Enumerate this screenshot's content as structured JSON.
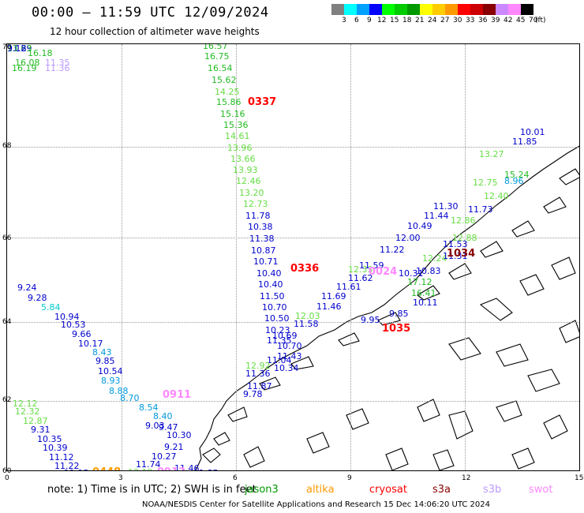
{
  "title": "00:00 – 11:59 UTC 12/09/2024",
  "subtitle": "12 hour collection of altimeter wave heights",
  "colorbar": {
    "unit": "(ft)",
    "swatches": [
      "#808080",
      "#00ffff",
      "#00a0ff",
      "#0000ff",
      "#00ff00",
      "#00cc00",
      "#009900",
      "#ffff00",
      "#ffcc00",
      "#ff9900",
      "#ff0000",
      "#cc0000",
      "#880000",
      "#cc88ff",
      "#ff88ff",
      "#000000"
    ],
    "labels": [
      "3",
      "6",
      "9",
      "12",
      "15",
      "18",
      "21",
      "24",
      "27",
      "30",
      "33",
      "36",
      "39",
      "42",
      "45",
      "70"
    ]
  },
  "axes": {
    "lat_ticks": [
      "70",
      "68",
      "66",
      "64",
      "62",
      "60"
    ],
    "lon_ticks": [
      "0",
      "3",
      "6",
      "9",
      "12",
      "15"
    ]
  },
  "pass_times": [
    {
      "text": "0337",
      "color": "#ff0000"
    },
    {
      "text": "0336",
      "color": "#ff0000"
    },
    {
      "text": "0024",
      "color": "#ff88ff"
    },
    {
      "text": "1034",
      "color": "#880000"
    },
    {
      "text": "1035",
      "color": "#ff0000"
    },
    {
      "text": "0911",
      "color": "#ff88ff"
    },
    {
      "text": "0448",
      "color": "#ff9900"
    },
    {
      "text": "0912",
      "color": "#ff88ff"
    }
  ],
  "observations": [
    {
      "text": "16.18",
      "color": "#22bb22"
    },
    {
      "text": "16.08",
      "color": "#22bb22"
    },
    {
      "text": "16.19",
      "color": "#22bb22"
    },
    {
      "text": "11.35",
      "color": "#bb99ff"
    },
    {
      "text": "11.36",
      "color": "#bb99ff"
    },
    {
      "text": "16.57",
      "color": "#22bb22"
    },
    {
      "text": "16.75",
      "color": "#22bb22"
    },
    {
      "text": "16.54",
      "color": "#22bb22"
    },
    {
      "text": "15.62",
      "color": "#22bb22"
    },
    {
      "text": "14.25",
      "color": "#66dd44"
    },
    {
      "text": "15.86",
      "color": "#22bb22"
    },
    {
      "text": "15.16",
      "color": "#22bb22"
    },
    {
      "text": "15.36",
      "color": "#22bb22"
    },
    {
      "text": "14.61",
      "color": "#66dd44"
    },
    {
      "text": "13.96",
      "color": "#66dd44"
    },
    {
      "text": "13.66",
      "color": "#66dd44"
    },
    {
      "text": "13.93",
      "color": "#66dd44"
    },
    {
      "text": "12.46",
      "color": "#66dd44"
    },
    {
      "text": "13.20",
      "color": "#66dd44"
    },
    {
      "text": "12.73",
      "color": "#66dd44"
    },
    {
      "text": "11.78",
      "color": "#0000cc"
    },
    {
      "text": "10.38",
      "color": "#0000cc"
    },
    {
      "text": "11.38",
      "color": "#0000cc"
    },
    {
      "text": "10.87",
      "color": "#0000cc"
    },
    {
      "text": "10.71",
      "color": "#0000cc"
    },
    {
      "text": "10.40",
      "color": "#0000cc"
    },
    {
      "text": "10.40",
      "color": "#0000cc"
    },
    {
      "text": "11.50",
      "color": "#0000cc"
    },
    {
      "text": "10.70",
      "color": "#0000cc"
    },
    {
      "text": "10.50",
      "color": "#0000cc"
    },
    {
      "text": "10.23",
      "color": "#0000cc"
    },
    {
      "text": "11.35",
      "color": "#0000cc"
    },
    {
      "text": "10.69",
      "color": "#0000cc"
    },
    {
      "text": "10.70",
      "color": "#0000cc"
    },
    {
      "text": "11.43",
      "color": "#0000cc"
    },
    {
      "text": "11.04",
      "color": "#0000cc"
    },
    {
      "text": "10.34",
      "color": "#0000cc"
    },
    {
      "text": "11.36",
      "color": "#0000cc"
    },
    {
      "text": "11.87",
      "color": "#0000cc"
    },
    {
      "text": "9.78",
      "color": "#0000cc"
    },
    {
      "text": "12.92",
      "color": "#66dd44"
    },
    {
      "text": "11.58",
      "color": "#0000cc"
    },
    {
      "text": "12.03",
      "color": "#66dd44"
    },
    {
      "text": "11.46",
      "color": "#0000cc"
    },
    {
      "text": "11.69",
      "color": "#0000cc"
    },
    {
      "text": "11.61",
      "color": "#0000cc"
    },
    {
      "text": "11.62",
      "color": "#0000cc"
    },
    {
      "text": "12.33",
      "color": "#66dd44"
    },
    {
      "text": "11.59",
      "color": "#0000cc"
    },
    {
      "text": "11.22",
      "color": "#0000cc"
    },
    {
      "text": "12.00",
      "color": "#0000cc"
    },
    {
      "text": "10.49",
      "color": "#0000cc"
    },
    {
      "text": "11.44",
      "color": "#0000cc"
    },
    {
      "text": "11.30",
      "color": "#0000cc"
    },
    {
      "text": "12.24",
      "color": "#66dd44"
    },
    {
      "text": "10.83",
      "color": "#0000cc"
    },
    {
      "text": "11.53",
      "color": "#0000cc"
    },
    {
      "text": "11.31",
      "color": "#0000cc"
    },
    {
      "text": "12.86",
      "color": "#66dd44"
    },
    {
      "text": "12.88",
      "color": "#66dd44"
    },
    {
      "text": "11.73",
      "color": "#0000cc"
    },
    {
      "text": "12.40",
      "color": "#66dd44"
    },
    {
      "text": "12.75",
      "color": "#66dd44"
    },
    {
      "text": "8.96",
      "color": "#0099dd"
    },
    {
      "text": "13.27",
      "color": "#66dd44"
    },
    {
      "text": "15.24",
      "color": "#22bb22"
    },
    {
      "text": "11.85",
      "color": "#0000cc"
    },
    {
      "text": "10.01",
      "color": "#0000cc"
    },
    {
      "text": "10.31",
      "color": "#0000cc"
    },
    {
      "text": "17.12",
      "color": "#22bb22"
    },
    {
      "text": "16.41",
      "color": "#22bb22"
    },
    {
      "text": "10.11",
      "color": "#0000cc"
    },
    {
      "text": "9.85",
      "color": "#0000cc"
    },
    {
      "text": "9.95",
      "color": "#0000cc"
    },
    {
      "text": "9.24",
      "color": "#0000cc"
    },
    {
      "text": "9.28",
      "color": "#0000cc"
    },
    {
      "text": "5.84",
      "color": "#00cccc"
    },
    {
      "text": "10.94",
      "color": "#0000cc"
    },
    {
      "text": "10.53",
      "color": "#0000cc"
    },
    {
      "text": "9.66",
      "color": "#0000cc"
    },
    {
      "text": "10.17",
      "color": "#0000cc"
    },
    {
      "text": "8.43",
      "color": "#0099dd"
    },
    {
      "text": "9.85",
      "color": "#0000cc"
    },
    {
      "text": "10.54",
      "color": "#0000cc"
    },
    {
      "text": "8.93",
      "color": "#0099dd"
    },
    {
      "text": "8.88",
      "color": "#0099dd"
    },
    {
      "text": "8.70",
      "color": "#0099dd"
    },
    {
      "text": "8.54",
      "color": "#0099dd"
    },
    {
      "text": "8.40",
      "color": "#0099dd"
    },
    {
      "text": "9.03",
      "color": "#0000cc"
    },
    {
      "text": "9.47",
      "color": "#0000cc"
    },
    {
      "text": "10.30",
      "color": "#0000cc"
    },
    {
      "text": "9.21",
      "color": "#0000cc"
    },
    {
      "text": "10.27",
      "color": "#0000cc"
    },
    {
      "text": "11.74",
      "color": "#0000cc"
    },
    {
      "text": "12.19",
      "color": "#66dd44"
    },
    {
      "text": "12.12",
      "color": "#66dd44"
    },
    {
      "text": "12.32",
      "color": "#66dd44"
    },
    {
      "text": "12.87",
      "color": "#66dd44"
    },
    {
      "text": "9.31",
      "color": "#0000cc"
    },
    {
      "text": "10.35",
      "color": "#0000cc"
    },
    {
      "text": "10.39",
      "color": "#0000cc"
    },
    {
      "text": "11.12",
      "color": "#0000cc"
    },
    {
      "text": "11.22",
      "color": "#0000cc"
    },
    {
      "text": "11.13",
      "color": "#0000cc"
    },
    {
      "text": "11.85",
      "color": "#0000cc"
    },
    {
      "text": "11.46",
      "color": "#0000cc"
    },
    {
      "text": "11.29",
      "color": "#0000cc"
    },
    {
      "text": "13.63",
      "color": "#22bb22"
    },
    {
      "text": "9.18",
      "color": "#0000cc"
    }
  ],
  "note": "note:  1) Time is in UTC; 2) SWH is in feet",
  "satellites": [
    {
      "name": "jason3",
      "color": "#009900"
    },
    {
      "name": "altika",
      "color": "#ff9900"
    },
    {
      "name": "cryosat",
      "color": "#ff0000"
    },
    {
      "name": "s3a",
      "color": "#880000"
    },
    {
      "name": "s3b",
      "color": "#bb99ff"
    },
    {
      "name": "swot",
      "color": "#ff88ff"
    }
  ],
  "footer": "NOAA/NESDIS Center for Satellite Applications and Research   15 Dec 14:06:20 UTC 2024"
}
